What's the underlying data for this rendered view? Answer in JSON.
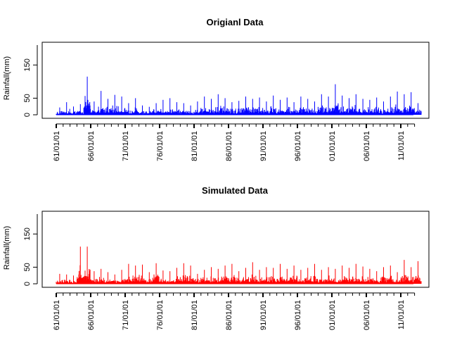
{
  "chart_data": [
    {
      "type": "bar",
      "title": "Origianl Data",
      "xlabel": "",
      "ylabel": "Rainfall(mm)",
      "color": "#0000ff",
      "ylim": [
        0,
        210
      ],
      "yticks": [
        0,
        50,
        150
      ],
      "xticks": [
        "61/01/01",
        "66/01/01",
        "71/01/01",
        "76/01/01",
        "81/01/01",
        "86/01/01",
        "91/01/01",
        "96/01/01",
        "01/01/01",
        "06/01/01",
        "11/01/01"
      ],
      "x_start_year": 1961,
      "x_end_year": 2013,
      "grid": false,
      "yearly_max": [
        22,
        38,
        25,
        32,
        115,
        40,
        72,
        48,
        60,
        55,
        35,
        50,
        28,
        24,
        35,
        45,
        50,
        38,
        35,
        28,
        40,
        55,
        48,
        62,
        50,
        38,
        42,
        55,
        48,
        52,
        40,
        58,
        45,
        52,
        38,
        55,
        48,
        40,
        62,
        55,
        92,
        58,
        50,
        62,
        48,
        45,
        52,
        40,
        55,
        70,
        62,
        68,
        35
      ]
    },
    {
      "type": "bar",
      "title": "Simulated Data",
      "xlabel": "",
      "ylabel": "Rainfall(mm)",
      "color": "#ff0000",
      "ylim": [
        0,
        210
      ],
      "yticks": [
        0,
        50,
        150
      ],
      "xticks": [
        "61/01/01",
        "66/01/01",
        "71/01/01",
        "76/01/01",
        "81/01/01",
        "86/01/01",
        "91/01/01",
        "96/01/01",
        "01/01/01",
        "06/01/01",
        "11/01/01"
      ],
      "x_start_year": 1961,
      "x_end_year": 2013,
      "grid": false,
      "yearly_max": [
        30,
        28,
        25,
        112,
        112,
        38,
        45,
        35,
        28,
        42,
        60,
        55,
        58,
        35,
        62,
        40,
        38,
        48,
        62,
        55,
        30,
        42,
        50,
        45,
        55,
        60,
        38,
        48,
        65,
        42,
        50,
        48,
        60,
        45,
        55,
        42,
        48,
        60,
        42,
        50,
        45,
        55,
        48,
        60,
        52,
        45,
        38,
        50,
        55,
        35,
        72,
        50,
        68
      ]
    }
  ]
}
